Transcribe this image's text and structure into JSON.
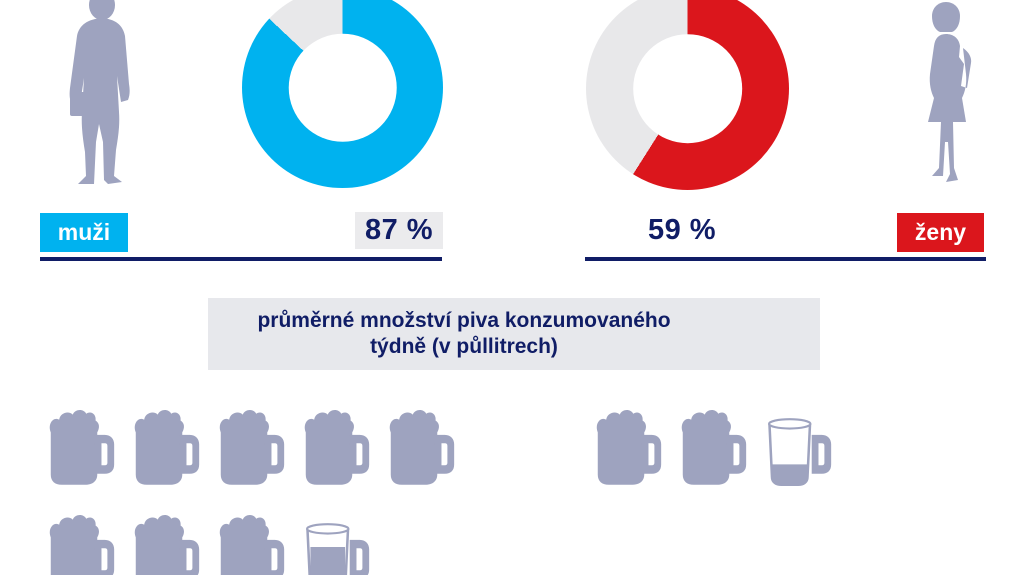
{
  "colors": {
    "white": "#ffffff",
    "navy": "#101d66",
    "silhouette": "#9ea3bf",
    "donut_track": "#e8e8ea",
    "panel_bg": "#e7e8ec",
    "badge_bg": "#ebebed"
  },
  "groups": {
    "men": {
      "label": "muži",
      "percent": 87,
      "percent_label": "87 %",
      "accent": "#00b2ef",
      "mug_rows": [
        [
          1,
          1,
          1,
          1,
          1
        ],
        [
          1,
          1,
          1,
          0.75
        ]
      ]
    },
    "women": {
      "label": "ženy",
      "percent": 59,
      "percent_label": "59 %",
      "accent": "#db161c",
      "mug_rows": [
        [
          1,
          1,
          0.35
        ]
      ]
    }
  },
  "panel": {
    "line1": "průměrné množství piva konzumovaného",
    "line2": "týdně (v půllitrech)"
  },
  "icons": {
    "man": "man-silhouette",
    "woman": "woman-silhouette",
    "mug_full": "beer-mug-full",
    "mug_partial": "beer-mug-partial"
  },
  "chart_data": [
    {
      "type": "pie",
      "variant": "donut",
      "category": "muži",
      "values": [
        87,
        13
      ],
      "colors": [
        "#00b2ef",
        "#e8e8ea"
      ],
      "label": "87 %",
      "start_angle": "top",
      "direction": "clockwise"
    },
    {
      "type": "pie",
      "variant": "donut",
      "category": "ženy",
      "values": [
        59,
        41
      ],
      "colors": [
        "#db161c",
        "#e8e8ea"
      ],
      "label": "59 %",
      "start_angle": "top",
      "direction": "clockwise"
    },
    {
      "type": "bar",
      "variant": "pictogram-beer-mugs",
      "title": "průměrné množství piva konzumovaného týdně (v půllitrech)",
      "categories": [
        "muži",
        "ženy"
      ],
      "values": [
        8.75,
        2.35
      ],
      "unit": "půllitry",
      "icon": "beer-mug"
    }
  ]
}
